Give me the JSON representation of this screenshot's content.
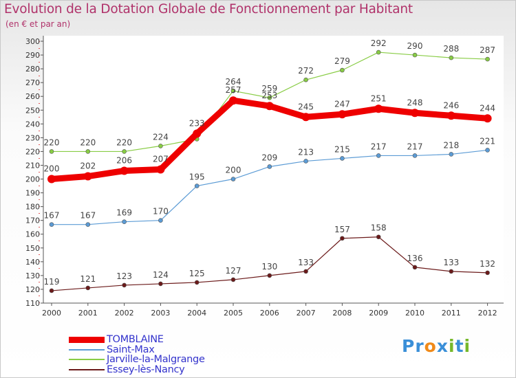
{
  "header": {
    "title": "Evolution de la Dotation Globale de Fonctionnement par Habitant",
    "subtitle": "(en € et par an)"
  },
  "chart_data": {
    "type": "line",
    "title": "Evolution de la Dotation Globale de Fonctionnement par Habitant",
    "subtitle": "(en € et par an)",
    "xlabel": "",
    "ylabel": "",
    "categories": [
      "2000",
      "2001",
      "2002",
      "2003",
      "2004",
      "2005",
      "2006",
      "2007",
      "2008",
      "2009",
      "2010",
      "2011",
      "2012"
    ],
    "ylim": [
      110,
      300
    ],
    "ytick_step": 10,
    "grid": false,
    "legend_position": "bottom-left",
    "series": [
      {
        "name": "Jarville-la-Malgrange",
        "color": "#88cc44",
        "values": [
          220,
          220,
          220,
          224,
          229,
          264,
          259,
          272,
          279,
          292,
          290,
          288,
          287
        ],
        "labels": [
          "220",
          "220",
          "220",
          "224",
          "",
          "264",
          "259",
          "272",
          "279",
          "292",
          "290",
          "288",
          "287"
        ]
      },
      {
        "name": "Saint-Max",
        "color": "#5b9bd5",
        "values": [
          167,
          167,
          169,
          170,
          195,
          200,
          209,
          213,
          215,
          217,
          217,
          218,
          221
        ],
        "labels": [
          "167",
          "167",
          "169",
          "170",
          "195",
          "200",
          "209",
          "213",
          "215",
          "217",
          "217",
          "218",
          "221"
        ]
      },
      {
        "name": "Essey-lès-Nancy",
        "color": "#6b1a1a",
        "values": [
          119,
          121,
          123,
          124,
          125,
          127,
          130,
          133,
          157,
          158,
          136,
          133,
          132
        ],
        "labels": [
          "119",
          "121",
          "123",
          "124",
          "125",
          "127",
          "130",
          "133",
          "157",
          "158",
          "136",
          "133",
          "132"
        ]
      },
      {
        "name": "TOMBLAINE",
        "color": "#ee0000",
        "values": [
          200,
          202,
          206,
          207,
          233,
          257,
          253,
          245,
          247,
          251,
          248,
          246,
          244
        ],
        "labels": [
          "200",
          "202",
          "206",
          "207",
          "233",
          "257",
          "253",
          "245",
          "247",
          "251",
          "248",
          "246",
          "244"
        ]
      }
    ]
  },
  "legend": {
    "items": [
      {
        "name": "TOMBLAINE",
        "color": "#ee0000"
      },
      {
        "name": "Saint-Max",
        "color": "#5b9bd5"
      },
      {
        "name": "Jarville-la-Malgrange",
        "color": "#88cc44"
      },
      {
        "name": "Essey-lès-Nancy",
        "color": "#6b1a1a"
      }
    ]
  },
  "logo": {
    "parts": [
      "Pr",
      "o",
      "x",
      "i",
      "t",
      "i"
    ],
    "colors": [
      "#3a8fd8",
      "#f08a1a",
      "#3a8fd8",
      "#76b82a",
      "#3a8fd8",
      "#76b82a"
    ]
  }
}
